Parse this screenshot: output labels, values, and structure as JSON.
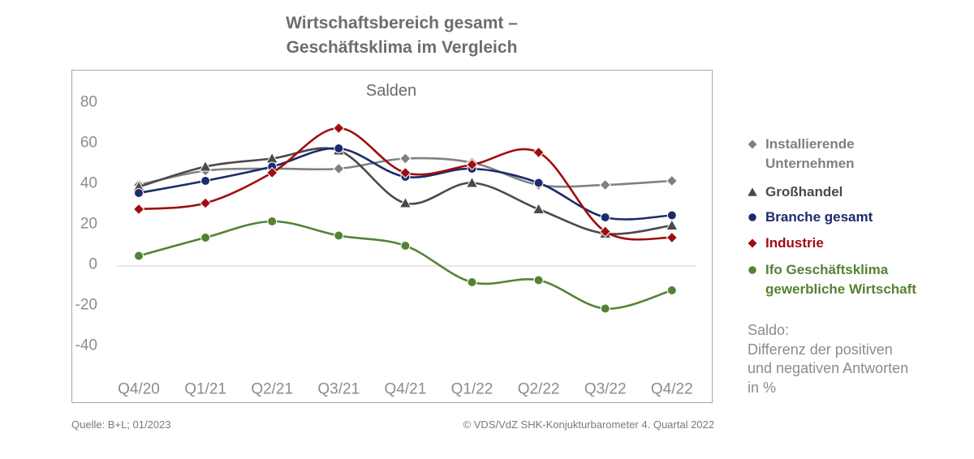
{
  "chart_data": {
    "type": "line",
    "title": "Wirtschaftsbereich gesamt – Geschäftsklima im Vergleich",
    "subtitle": "Salden",
    "categories": [
      "Q4/20",
      "Q1/21",
      "Q2/21",
      "Q3/21",
      "Q4/21",
      "Q1/22",
      "Q2/22",
      "Q3/22",
      "Q4/22"
    ],
    "ylim": [
      -40,
      80
    ],
    "yticks": [
      80,
      60,
      40,
      20,
      0,
      -20,
      -40
    ],
    "grid": false,
    "zero_line": true,
    "smooth_lines": true,
    "legend_position": "right",
    "series": [
      {
        "name": "Installierende Unternehmen",
        "marker": "diamond",
        "color": "#808080",
        "values": [
          40,
          47,
          48,
          48,
          53,
          51,
          40,
          40,
          42
        ]
      },
      {
        "name": "Großhandel",
        "marker": "triangle",
        "color": "#4a4a4a",
        "values": [
          39,
          49,
          53,
          57,
          31,
          41,
          28,
          16,
          20
        ]
      },
      {
        "name": "Branche gesamt",
        "marker": "circle",
        "color": "#1d2a6b",
        "values": [
          36,
          42,
          49,
          58,
          44,
          48,
          41,
          24,
          25
        ]
      },
      {
        "name": "Industrie",
        "marker": "diamond",
        "color": "#a00d10",
        "values": [
          28,
          31,
          46,
          68,
          46,
          50,
          56,
          17,
          14
        ]
      },
      {
        "name": "Ifo Geschäftsklima gewerbliche Wirtschaft",
        "marker": "circle",
        "color": "#548235",
        "values": [
          5,
          14,
          22,
          15,
          10,
          -8,
          -7,
          -21,
          -12
        ]
      }
    ]
  },
  "note": {
    "lines": [
      "Saldo:",
      "Differenz der positiven",
      "und negativen Antworten",
      "in %"
    ]
  },
  "footer": {
    "source": "Quelle: B+L; 01/2023",
    "copyright": "© VDS/VdZ SHK-Konjukturbarometer 4. Quartal 2022"
  }
}
